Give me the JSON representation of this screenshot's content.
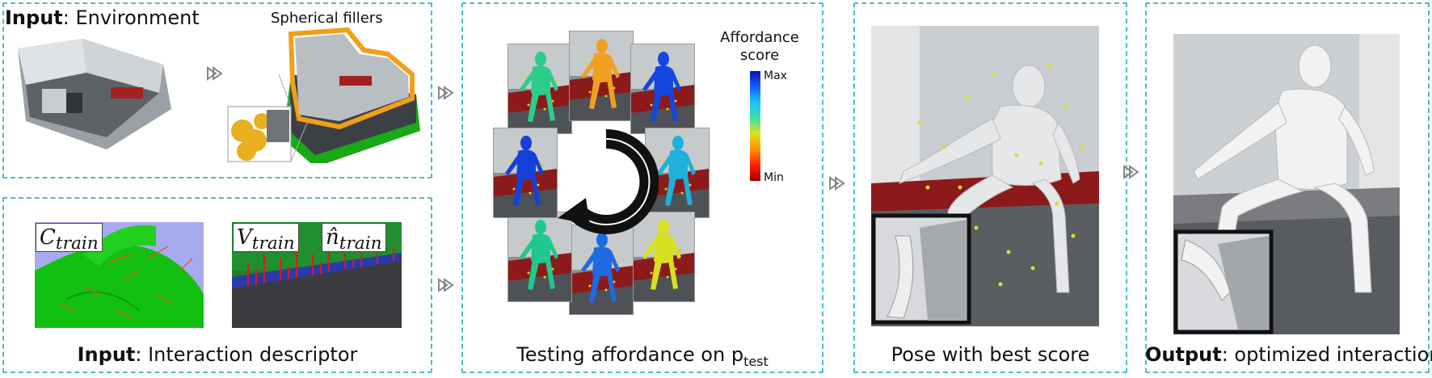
{
  "panel1": {
    "title_bold": "Input",
    "title_rest": ": Environment",
    "sub_label": "Spherical fillers"
  },
  "panel2": {
    "title_bold": "Input",
    "title_rest": ": Interaction descriptor",
    "label_c": "C",
    "label_c_sub": "train",
    "label_v": "V",
    "label_v_sub": "train",
    "label_n": "n̂",
    "label_n_sub": "train"
  },
  "panel3": {
    "caption_main": "Testing affordance on p",
    "caption_sub": "test",
    "legend_title_1": "Affordance",
    "legend_title_2": "score",
    "legend_max": "Max",
    "legend_min": "Min",
    "colors": [
      "#2ecc8a",
      "#f0a020",
      "#1446e0",
      "#1eb0d8",
      "#d8e020",
      "#1e6ae0",
      "#20c890",
      "#1440d8"
    ]
  },
  "panel4": {
    "caption": "Pose with best score"
  },
  "panel5": {
    "title_bold": "Output",
    "title_rest": ": optimized interaction"
  }
}
